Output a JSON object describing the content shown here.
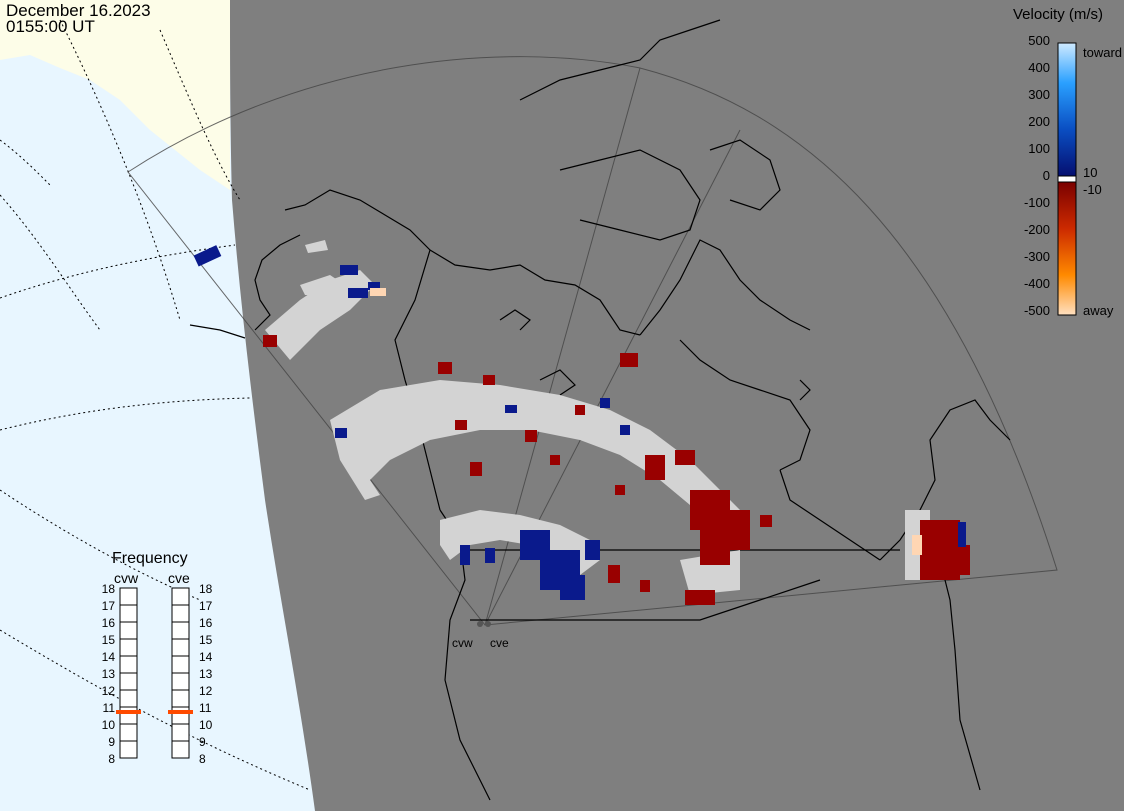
{
  "header": {
    "date": "December 16.2023",
    "time": "0155:00 UT"
  },
  "colors": {
    "ocean": "#e8f6ff",
    "land_dark": "#7f7f7f",
    "land_light": "#fdfde8",
    "ground_scatter": "#d3d3d3",
    "away_dark": "#990000",
    "toward_dark": "#0a1a8c",
    "freq_marker": "#ff4a00"
  },
  "velocity_legend": {
    "title": "Velocity (m/s)",
    "ticks": [
      "500",
      "400",
      "300",
      "200",
      "100",
      "0",
      "-100",
      "-200",
      "-300",
      "-400",
      "-500"
    ],
    "extra_ticks": {
      "upper": "10",
      "lower": "-10"
    },
    "toward_label": "toward",
    "away_label": "away"
  },
  "frequency_panel": {
    "title": "Frequency",
    "radars": [
      {
        "name": "cvw",
        "frequency_mhz": 11
      },
      {
        "name": "cve",
        "frequency_mhz": 11
      }
    ],
    "scale_mhz": [
      "18",
      "17",
      "16",
      "15",
      "14",
      "13",
      "12",
      "11",
      "10",
      "9",
      "8"
    ]
  },
  "radar_sites": [
    {
      "name": "cvw"
    },
    {
      "name": "cve"
    }
  ]
}
